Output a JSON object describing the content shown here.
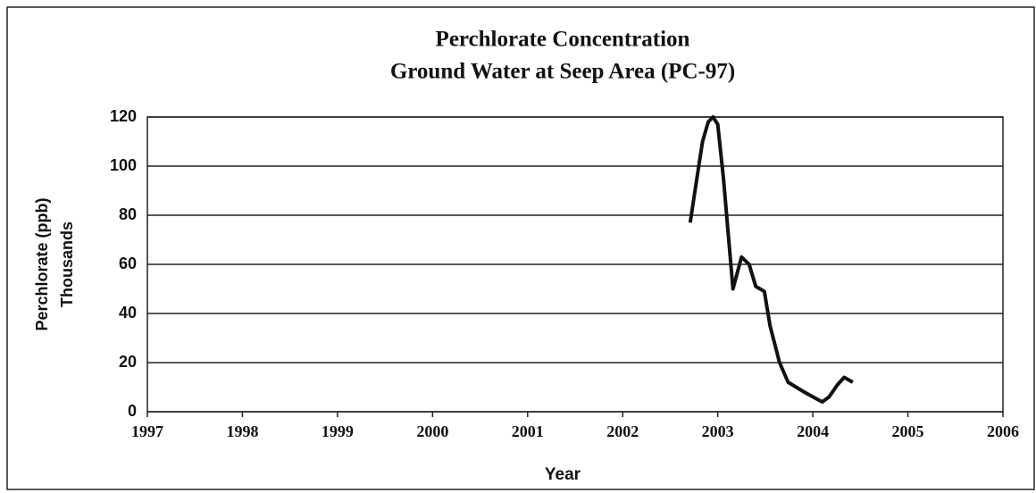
{
  "chart_data": {
    "type": "line",
    "title": "Perchlorate Concentration",
    "subtitle": "Ground Water at Seep Area (PC-97)",
    "x_label": "Year",
    "y_label": "Perchlorate (ppb)",
    "y_label_units": "Thousands",
    "x": [
      2002.71,
      2002.8,
      2002.84,
      2002.9,
      2002.95,
      2003.0,
      2003.06,
      2003.16,
      2003.25,
      2003.33,
      2003.4,
      2003.49,
      2003.55,
      2003.65,
      2003.74,
      2003.91,
      2004.05,
      2004.1,
      2004.17,
      2004.26,
      2004.33,
      2004.42
    ],
    "series": [
      {
        "color": "#111111",
        "values": [
          77,
          100,
          110,
          118,
          120,
          117,
          95,
          50,
          63,
          60,
          51,
          49,
          35,
          20,
          12,
          8,
          5,
          4,
          6,
          11,
          14,
          12
        ]
      }
    ],
    "xlim": [
      1997,
      2006
    ],
    "xticks": [
      1997,
      1998,
      1999,
      2000,
      2001,
      2002,
      2003,
      2004,
      2005,
      2006
    ],
    "ylim": [
      0,
      120
    ],
    "yticks": [
      0,
      20,
      40,
      60,
      80,
      100,
      120
    ],
    "grid": true
  }
}
